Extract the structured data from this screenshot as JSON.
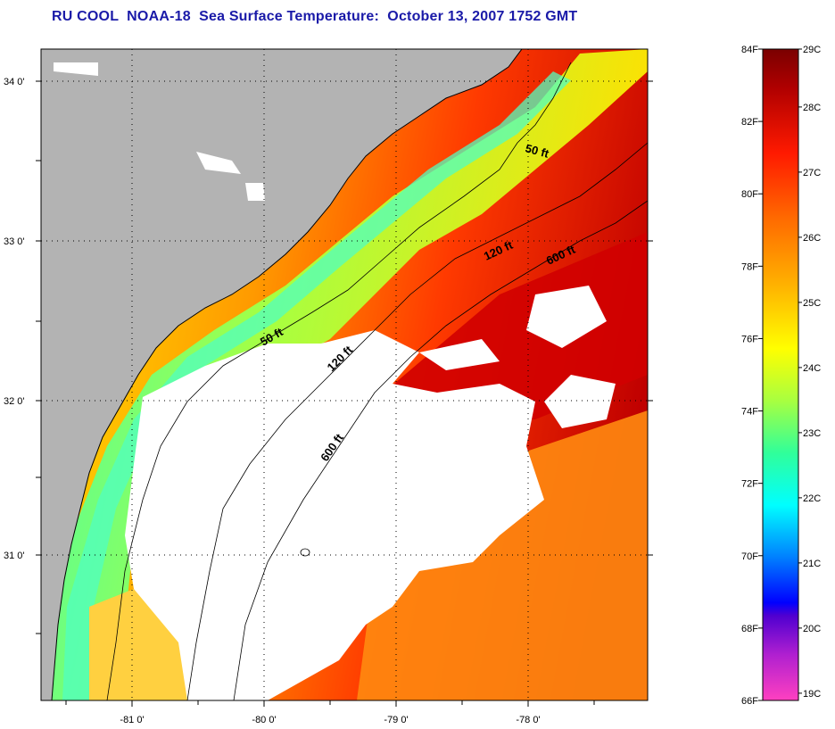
{
  "title": "RU COOL  NOAA-18  Sea Surface Temperature:  October 13, 2007 1752 GMT",
  "map": {
    "lon_ticks": [
      "-81 0'",
      "-80 0'",
      "-79 0'",
      "-78 0'"
    ],
    "lat_ticks": [
      "34 0'",
      "33 0'",
      "32 0'",
      "31 0'"
    ],
    "colors": {
      "land": "#b3b3b3",
      "cloud": "#ffffff",
      "contour": "#000000"
    },
    "contour_labels": [
      {
        "text": "50 ft",
        "depth": 50
      },
      {
        "text": "120 ft",
        "depth": 120
      },
      {
        "text": "600 ft",
        "depth": 600
      },
      {
        "text": "50 ft",
        "depth": 50
      },
      {
        "text": "120 ft",
        "depth": 120
      },
      {
        "text": "600 ft",
        "depth": 600
      }
    ]
  },
  "colorbar": {
    "fahrenheit_labels": [
      "84F",
      "82F",
      "80F",
      "78F",
      "76F",
      "74F",
      "72F",
      "70F",
      "68F",
      "66F"
    ],
    "celsius_labels": [
      "29C",
      "28C",
      "27C",
      "26C",
      "25C",
      "24C",
      "23C",
      "22C",
      "21C",
      "20C",
      "19C"
    ],
    "min_f": 66,
    "max_f": 84
  }
}
